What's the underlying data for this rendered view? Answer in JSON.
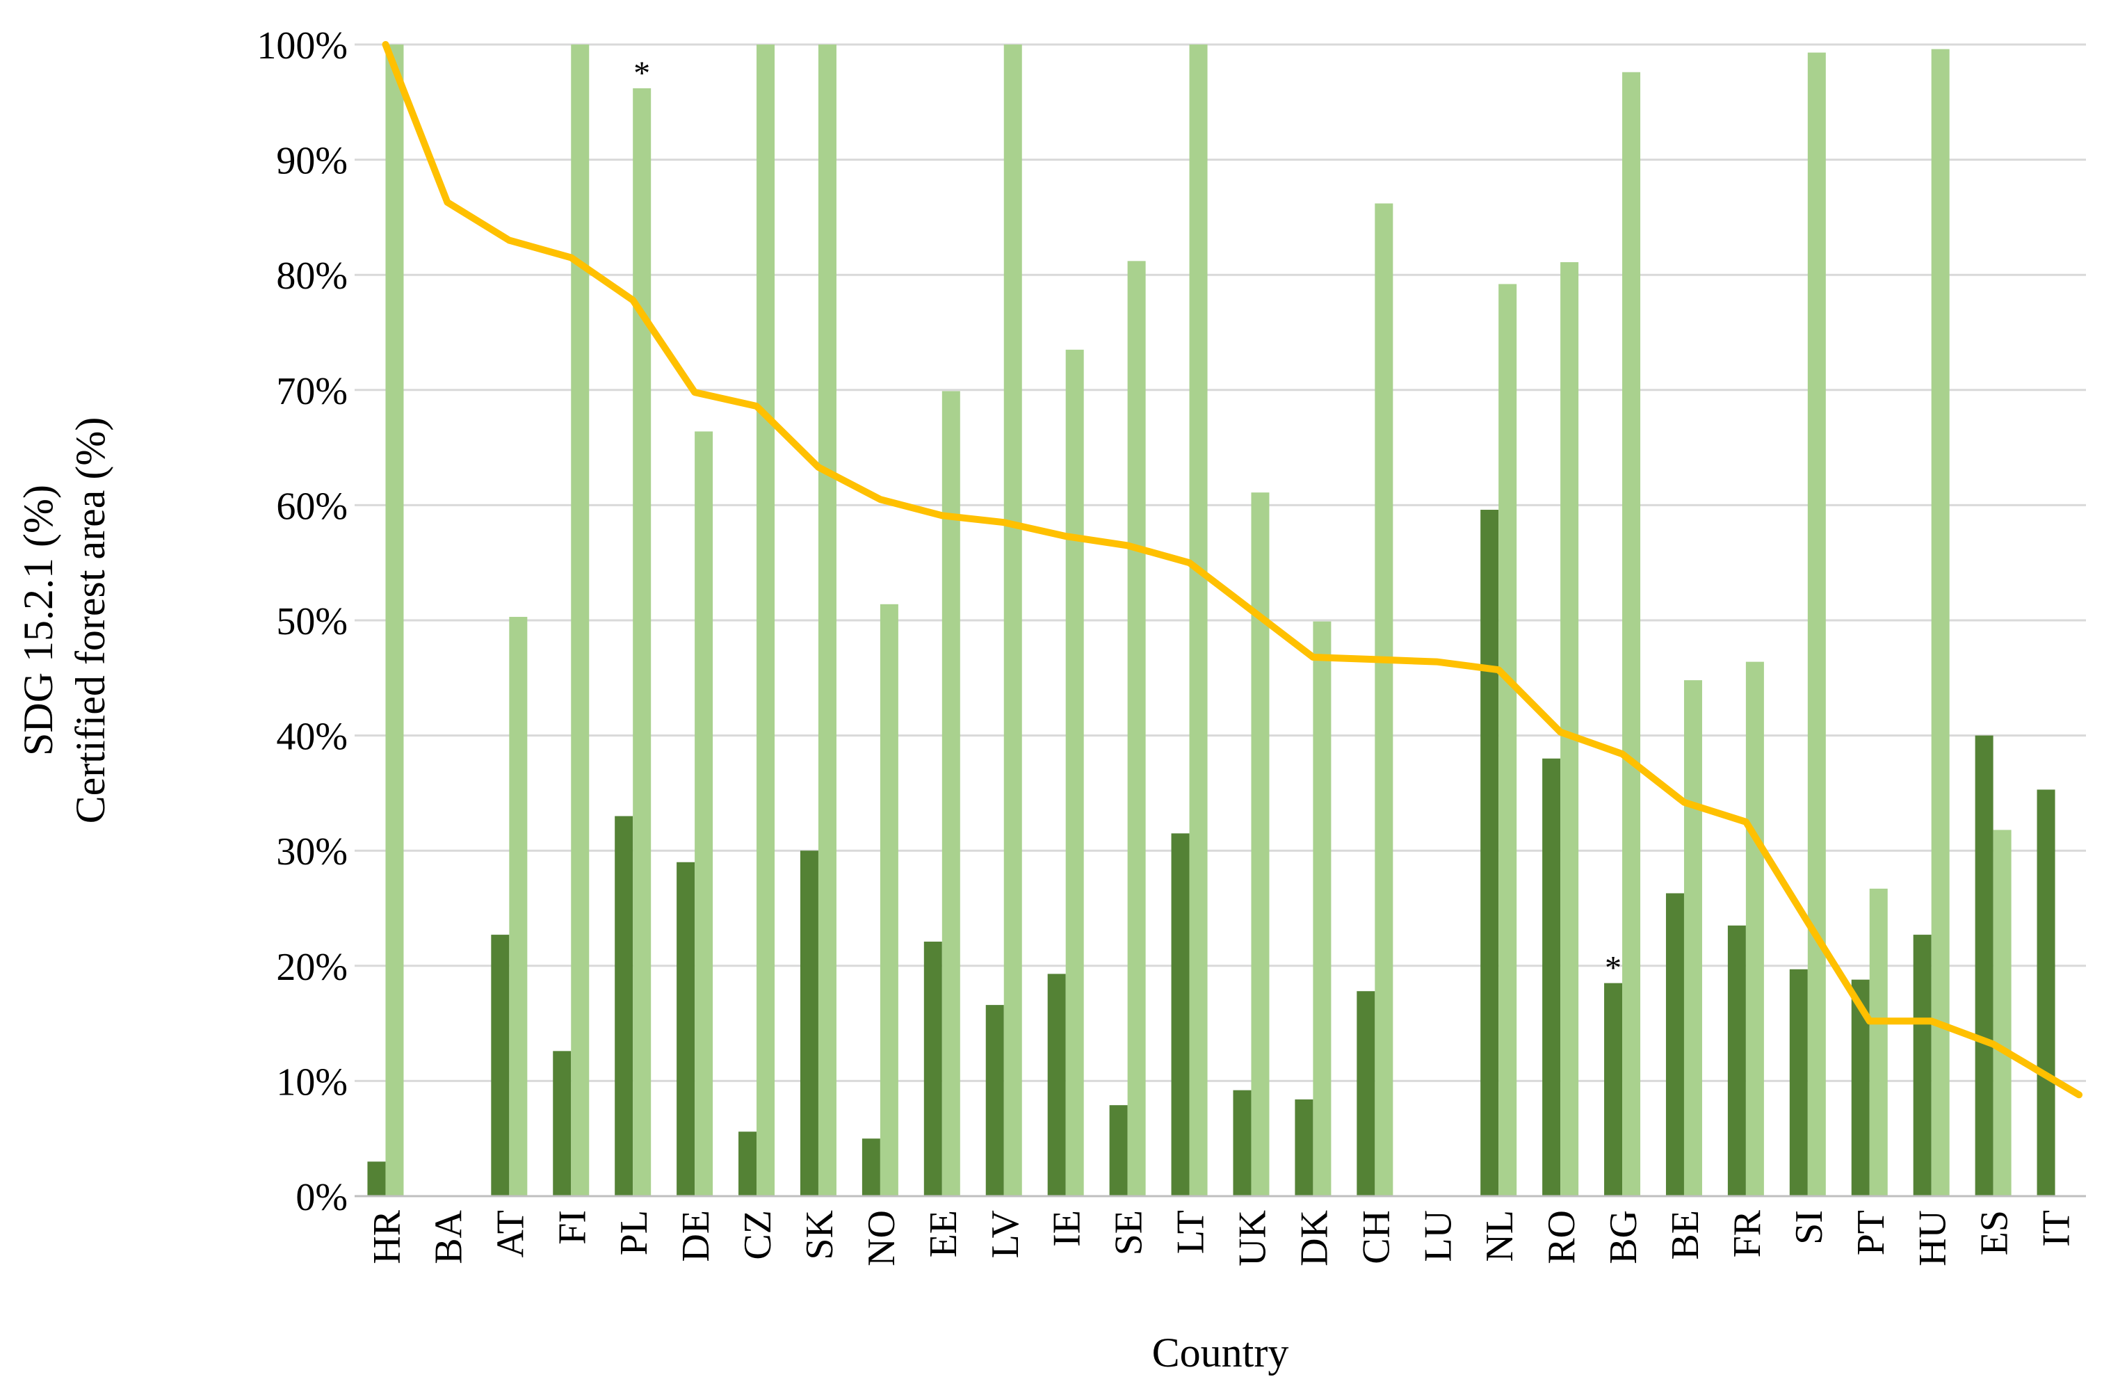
{
  "chart_data": {
    "type": "bar",
    "categories": [
      "HR",
      "BA",
      "AT",
      "FI",
      "PL",
      "DE",
      "CZ",
      "SK",
      "NO",
      "EE",
      "LV",
      "IE",
      "SE",
      "LT",
      "UK",
      "DK",
      "CH",
      "LU",
      "NL",
      "RO",
      "BG",
      "BE",
      "FR",
      "SI",
      "PT",
      "HU",
      "ES",
      "IT"
    ],
    "series": [
      {
        "kind": "bar",
        "color": "#548235",
        "values": [
          3,
          0,
          22.7,
          12.6,
          33,
          29,
          5.6,
          30,
          5,
          22.1,
          16.6,
          19.3,
          7.9,
          31.5,
          9.2,
          8.4,
          17.8,
          0,
          59.6,
          38,
          18.5,
          26.3,
          23.5,
          19.7,
          18.8,
          22.7,
          40,
          35.3
        ]
      },
      {
        "kind": "bar",
        "color": "#A9D18E",
        "values": [
          100,
          0,
          50.3,
          100,
          96.2,
          66.4,
          100,
          100,
          51.4,
          69.9,
          100,
          73.5,
          81.2,
          100,
          61.1,
          49.9,
          86.2,
          0,
          79.2,
          81.1,
          97.6,
          44.8,
          46.4,
          99.3,
          26.7,
          99.6,
          31.8,
          0
        ]
      },
      {
        "kind": "line",
        "color": "#FFC000",
        "values": [
          100,
          86.3,
          83,
          81.5,
          77.8,
          69.8,
          68.6,
          63.3,
          60.5,
          59.1,
          58.5,
          57.3,
          56.5,
          55,
          50.9,
          46.8,
          46.6,
          46.4,
          45.7,
          40.3,
          38.4,
          34.2,
          32.5,
          23.8,
          15.2,
          15.2,
          13.2,
          8.8
        ]
      }
    ],
    "ylim": [
      0,
      100
    ],
    "yticks": [
      "0%",
      "10%",
      "20%",
      "30%",
      "40%",
      "50%",
      "60%",
      "70%",
      "80%",
      "90%",
      "100%"
    ],
    "xlabel": "Country",
    "ylabel_line1": "SDG 15.2.1 (%)",
    "ylabel_line2": "Certified forest area (%)",
    "annotations": [
      {
        "category": "PL",
        "text": "*"
      },
      {
        "category": "BG",
        "text": "*"
      }
    ],
    "grid": true
  }
}
